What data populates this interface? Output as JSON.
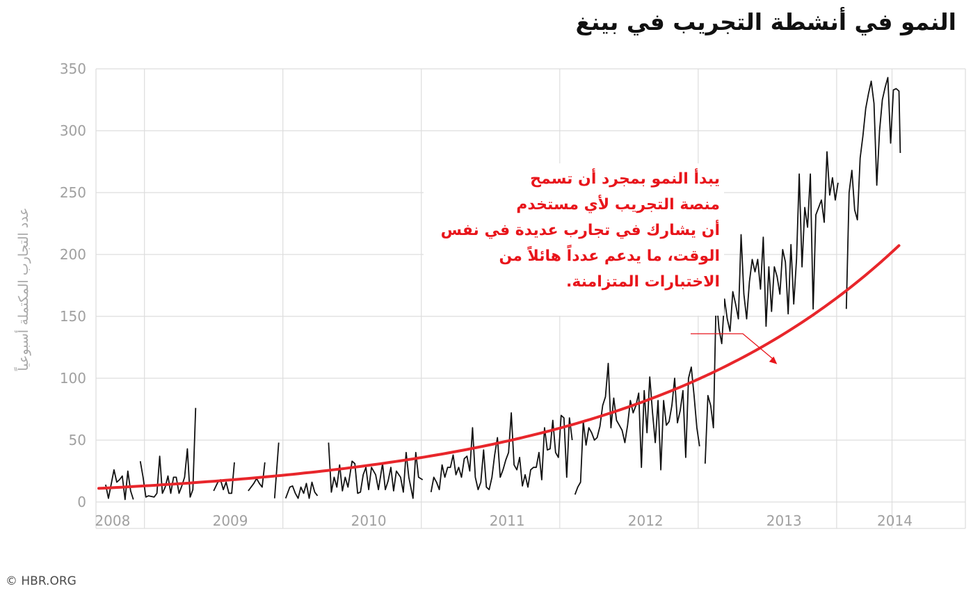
{
  "title": "النمو في أنشطة التجريب في بينغ",
  "source": "© HBR.ORG",
  "annotation": {
    "lines": [
      "يبدأ النمو بمجرد أن تسمح",
      "منصة التجريب لأي مستخدم",
      "أن يشارك في تجارب عديدة في نفس",
      "الوقت، ما يدعم عدداً هائلاً من",
      "الاختبارات المتزامنة."
    ],
    "arrow_target": {
      "x": 2012.9,
      "y": 108
    }
  },
  "colors": {
    "trend": "#e8262b",
    "series": "#111111",
    "grid": "#dddddd",
    "tick": "#a0a0a0",
    "annotation": "#e8151b"
  },
  "chart_data": {
    "type": "line",
    "title": "النمو في أنشطة التجريب في بينغ",
    "xlabel": "",
    "ylabel": "عدد التجارب المكتملة أسبوعياً",
    "xlim": [
      2007.98,
      2014.26
    ],
    "ylim": [
      0,
      350
    ],
    "y_ticks": [
      0,
      50,
      100,
      150,
      200,
      250,
      300,
      350
    ],
    "x_tick_labels": [
      "2008",
      "2009",
      "2010",
      "2011",
      "2012",
      "2013",
      "2014"
    ],
    "x_tick_positions": [
      2008.1,
      2008.95,
      2009.95,
      2010.95,
      2011.95,
      2012.95,
      2013.75
    ],
    "year_boundaries": [
      2008.33,
      2009.33,
      2010.33,
      2011.33,
      2012.33,
      2013.33,
      2013.73
    ],
    "grid": true,
    "legend": "none",
    "series": [
      {
        "style": "weekly",
        "segments": [
          [
            [
              2008.05,
              14
            ],
            [
              2008.07,
              3
            ],
            [
              2008.11,
              26
            ],
            [
              2008.13,
              16
            ],
            [
              2008.15,
              18
            ],
            [
              2008.17,
              21
            ],
            [
              2008.19,
              2
            ],
            [
              2008.21,
              25
            ],
            [
              2008.23,
              9
            ],
            [
              2008.25,
              2
            ]
          ],
          [
            [
              2008.3,
              33
            ],
            [
              2008.32,
              20
            ],
            [
              2008.34,
              4
            ],
            [
              2008.36,
              5
            ],
            [
              2008.4,
              4
            ],
            [
              2008.42,
              7
            ],
            [
              2008.44,
              37
            ],
            [
              2008.46,
              7
            ],
            [
              2008.48,
              12
            ],
            [
              2008.5,
              21
            ],
            [
              2008.52,
              7
            ],
            [
              2008.54,
              20
            ],
            [
              2008.56,
              20
            ],
            [
              2008.58,
              7
            ],
            [
              2008.6,
              13
            ],
            [
              2008.62,
              20
            ],
            [
              2008.64,
              43
            ],
            [
              2008.66,
              4
            ],
            [
              2008.68,
              10
            ],
            [
              2008.7,
              76
            ]
          ],
          [
            [
              2008.83,
              9
            ],
            [
              2008.86,
              16
            ],
            [
              2008.88,
              18
            ],
            [
              2008.9,
              10
            ],
            [
              2008.92,
              16
            ],
            [
              2008.94,
              7
            ],
            [
              2008.96,
              7
            ],
            [
              2008.98,
              32
            ]
          ],
          [
            [
              2009.08,
              9
            ],
            [
              2009.12,
              15
            ],
            [
              2009.14,
              19
            ],
            [
              2009.16,
              15
            ],
            [
              2009.18,
              12
            ],
            [
              2009.2,
              32
            ]
          ],
          [
            [
              2009.27,
              3
            ],
            [
              2009.3,
              48
            ]
          ],
          [
            [
              2009.35,
              3
            ],
            [
              2009.38,
              12
            ],
            [
              2009.4,
              13
            ],
            [
              2009.42,
              7
            ],
            [
              2009.44,
              3
            ],
            [
              2009.46,
              12
            ],
            [
              2009.48,
              7
            ],
            [
              2009.5,
              15
            ],
            [
              2009.52,
              3
            ],
            [
              2009.54,
              16
            ],
            [
              2009.56,
              8
            ],
            [
              2009.58,
              5
            ]
          ],
          [
            [
              2009.66,
              48
            ],
            [
              2009.68,
              8
            ],
            [
              2009.7,
              20
            ],
            [
              2009.72,
              12
            ],
            [
              2009.74,
              30
            ],
            [
              2009.76,
              9
            ],
            [
              2009.78,
              20
            ],
            [
              2009.8,
              12
            ],
            [
              2009.83,
              33
            ],
            [
              2009.85,
              31
            ],
            [
              2009.87,
              7
            ],
            [
              2009.89,
              8
            ],
            [
              2009.91,
              22
            ],
            [
              2009.93,
              28
            ],
            [
              2009.95,
              10
            ],
            [
              2009.97,
              28
            ],
            [
              2010.0,
              22
            ],
            [
              2010.02,
              10
            ],
            [
              2010.05,
              31
            ],
            [
              2010.07,
              10
            ],
            [
              2010.09,
              17
            ],
            [
              2010.11,
              28
            ],
            [
              2010.13,
              9
            ],
            [
              2010.15,
              25
            ],
            [
              2010.18,
              20
            ],
            [
              2010.2,
              8
            ],
            [
              2010.22,
              40
            ],
            [
              2010.24,
              20
            ],
            [
              2010.27,
              3
            ],
            [
              2010.29,
              40
            ],
            [
              2010.31,
              20
            ],
            [
              2010.34,
              18
            ]
          ],
          [
            [
              2010.4,
              8
            ],
            [
              2010.42,
              20
            ],
            [
              2010.44,
              16
            ],
            [
              2010.46,
              10
            ],
            [
              2010.48,
              30
            ],
            [
              2010.5,
              20
            ],
            [
              2010.52,
              28
            ],
            [
              2010.54,
              28
            ],
            [
              2010.56,
              38
            ],
            [
              2010.58,
              22
            ],
            [
              2010.6,
              28
            ],
            [
              2010.62,
              20
            ],
            [
              2010.64,
              35
            ],
            [
              2010.66,
              37
            ],
            [
              2010.68,
              25
            ],
            [
              2010.7,
              60
            ],
            [
              2010.72,
              20
            ],
            [
              2010.74,
              10
            ],
            [
              2010.76,
              16
            ],
            [
              2010.78,
              42
            ],
            [
              2010.8,
              12
            ],
            [
              2010.82,
              10
            ],
            [
              2010.84,
              20
            ],
            [
              2010.86,
              38
            ],
            [
              2010.88,
              52
            ],
            [
              2010.9,
              20
            ],
            [
              2010.92,
              26
            ],
            [
              2010.94,
              34
            ],
            [
              2010.96,
              40
            ],
            [
              2010.98,
              72
            ],
            [
              2011.0,
              30
            ],
            [
              2011.02,
              26
            ],
            [
              2011.04,
              36
            ],
            [
              2011.06,
              13
            ],
            [
              2011.08,
              22
            ],
            [
              2011.1,
              12
            ],
            [
              2011.12,
              26
            ],
            [
              2011.14,
              28
            ],
            [
              2011.16,
              28
            ],
            [
              2011.18,
              40
            ],
            [
              2011.2,
              18
            ],
            [
              2011.22,
              60
            ],
            [
              2011.24,
              42
            ],
            [
              2011.26,
              43
            ],
            [
              2011.28,
              66
            ],
            [
              2011.3,
              40
            ],
            [
              2011.32,
              36
            ],
            [
              2011.34,
              70
            ],
            [
              2011.36,
              68
            ],
            [
              2011.38,
              20
            ],
            [
              2011.4,
              68
            ],
            [
              2011.42,
              50
            ]
          ],
          [
            [
              2011.44,
              6
            ],
            [
              2011.46,
              12
            ],
            [
              2011.48,
              16
            ],
            [
              2011.5,
              65
            ],
            [
              2011.52,
              46
            ],
            [
              2011.54,
              60
            ],
            [
              2011.56,
              56
            ],
            [
              2011.58,
              50
            ],
            [
              2011.6,
              52
            ],
            [
              2011.62,
              61
            ],
            [
              2011.64,
              78
            ],
            [
              2011.66,
              85
            ],
            [
              2011.68,
              112
            ],
            [
              2011.7,
              60
            ],
            [
              2011.72,
              84
            ],
            [
              2011.74,
              66
            ],
            [
              2011.76,
              62
            ],
            [
              2011.78,
              58
            ],
            [
              2011.8,
              48
            ],
            [
              2011.82,
              62
            ],
            [
              2011.84,
              82
            ],
            [
              2011.86,
              72
            ],
            [
              2011.88,
              78
            ],
            [
              2011.9,
              88
            ],
            [
              2011.92,
              28
            ],
            [
              2011.94,
              90
            ],
            [
              2011.96,
              56
            ],
            [
              2011.98,
              101
            ],
            [
              2012.0,
              72
            ],
            [
              2012.02,
              48
            ],
            [
              2012.04,
              82
            ],
            [
              2012.06,
              26
            ],
            [
              2012.08,
              82
            ],
            [
              2012.1,
              62
            ],
            [
              2012.12,
              65
            ],
            [
              2012.14,
              78
            ],
            [
              2012.16,
              100
            ],
            [
              2012.18,
              64
            ],
            [
              2012.2,
              74
            ],
            [
              2012.22,
              90
            ],
            [
              2012.24,
              36
            ],
            [
              2012.26,
              100
            ],
            [
              2012.28,
              109
            ],
            [
              2012.3,
              86
            ],
            [
              2012.32,
              60
            ],
            [
              2012.34,
              45
            ]
          ],
          [
            [
              2012.38,
              31
            ],
            [
              2012.4,
              86
            ],
            [
              2012.42,
              78
            ],
            [
              2012.44,
              60
            ],
            [
              2012.46,
              166
            ],
            [
              2012.48,
              140
            ],
            [
              2012.5,
              128
            ],
            [
              2012.52,
              164
            ],
            [
              2012.54,
              148
            ],
            [
              2012.56,
              138
            ],
            [
              2012.58,
              170
            ],
            [
              2012.6,
              160
            ],
            [
              2012.62,
              148
            ],
            [
              2012.64,
              216
            ],
            [
              2012.66,
              168
            ],
            [
              2012.68,
              148
            ],
            [
              2012.7,
              178
            ],
            [
              2012.72,
              196
            ],
            [
              2012.74,
              186
            ],
            [
              2012.76,
              196
            ],
            [
              2012.78,
              172
            ],
            [
              2012.8,
              214
            ],
            [
              2012.82,
              142
            ],
            [
              2012.84,
              190
            ],
            [
              2012.86,
              154
            ],
            [
              2012.88,
              190
            ],
            [
              2012.9,
              182
            ],
            [
              2012.92,
              168
            ],
            [
              2012.94,
              204
            ],
            [
              2012.96,
              194
            ],
            [
              2012.98,
              152
            ],
            [
              2013.0,
              208
            ],
            [
              2013.02,
              160
            ],
            [
              2013.04,
              196
            ],
            [
              2013.06,
              265
            ],
            [
              2013.08,
              190
            ],
            [
              2013.1,
              238
            ],
            [
              2013.12,
              222
            ],
            [
              2013.14,
              265
            ],
            [
              2013.16,
              156
            ],
            [
              2013.18,
              232
            ],
            [
              2013.2,
              238
            ],
            [
              2013.22,
              244
            ],
            [
              2013.24,
              226
            ],
            [
              2013.26,
              283
            ],
            [
              2013.28,
              248
            ],
            [
              2013.3,
              262
            ],
            [
              2013.32,
              244
            ],
            [
              2013.34,
              258
            ]
          ],
          [
            [
              2013.4,
              156
            ],
            [
              2013.42,
              250
            ],
            [
              2013.44,
              268
            ],
            [
              2013.46,
              236
            ],
            [
              2013.48,
              228
            ],
            [
              2013.5,
              278
            ],
            [
              2013.52,
              296
            ],
            [
              2013.54,
              318
            ],
            [
              2013.56,
              330
            ],
            [
              2013.58,
              340
            ],
            [
              2013.6,
              322
            ],
            [
              2013.62,
              256
            ],
            [
              2013.64,
              300
            ],
            [
              2013.66,
              325
            ],
            [
              2013.68,
              335
            ],
            [
              2013.7,
              343
            ],
            [
              2013.72,
              290
            ],
            [
              2013.74,
              333
            ],
            [
              2013.76,
              334
            ],
            [
              2013.78,
              332
            ],
            [
              2013.79,
              282
            ]
          ]
        ]
      },
      {
        "style": "trend",
        "exponential": {
          "a": 11,
          "b": 0.5079,
          "x0": 2008.0
        },
        "x_range": [
          2008.0,
          2013.78
        ]
      }
    ]
  }
}
